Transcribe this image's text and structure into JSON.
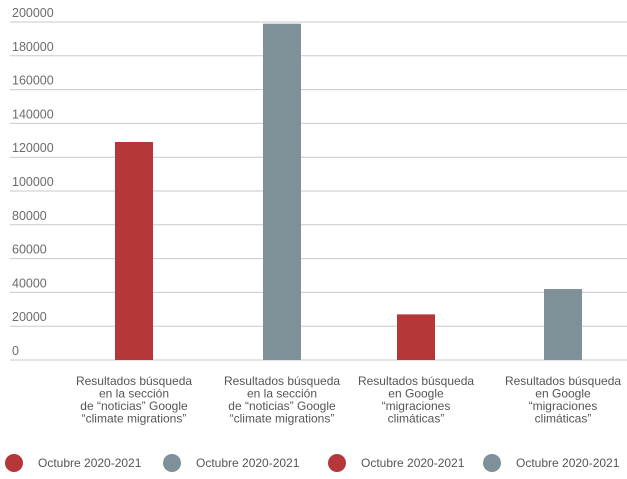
{
  "chart_data": {
    "type": "bar",
    "title": "",
    "xlabel": "",
    "ylabel": "",
    "ylim": [
      0,
      200000
    ],
    "yticks": [
      0,
      20000,
      40000,
      60000,
      80000,
      100000,
      120000,
      140000,
      160000,
      180000,
      200000
    ],
    "grid": true,
    "legend_position": "bottom",
    "categories": [
      [
        "Resultados búsqueda",
        "en la sección",
        "de “noticias” Google",
        "“climate migrations”"
      ],
      [
        "Resultados búsqueda",
        "en la sección",
        "de “noticias” Google",
        "“climate migrations”"
      ],
      [
        "Resultados búsqueda",
        "en Google",
        "“migraciones",
        "climáticas”"
      ],
      [
        "Resultados búsqueda",
        "en Google",
        "“migraciones",
        "climáticas”"
      ]
    ],
    "values": [
      129000,
      199000,
      27000,
      42000
    ],
    "colors": [
      "#b5373a",
      "#7f9198",
      "#b5373a",
      "#7f9198"
    ],
    "legend": [
      {
        "label": "Octubre 2020-2021",
        "color": "#b5373a"
      },
      {
        "label": "Octubre 2020-2021",
        "color": "#7f9198"
      },
      {
        "label": "Octubre 2020-2021",
        "color": "#b5373a"
      },
      {
        "label": "Octubre 2020-2021",
        "color": "#7f9198"
      }
    ]
  }
}
